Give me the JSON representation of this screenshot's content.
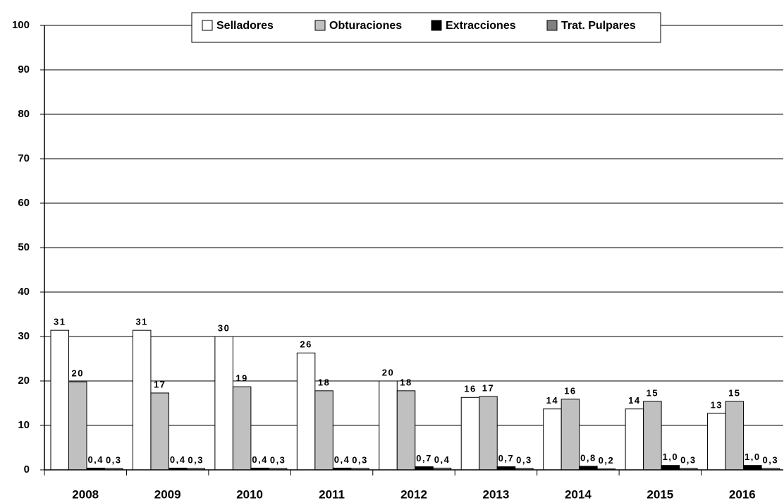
{
  "chart_data": {
    "type": "bar",
    "categories": [
      "2008",
      "2009",
      "2010",
      "2011",
      "2012",
      "2013",
      "2014",
      "2015",
      "2016"
    ],
    "series": [
      {
        "name": "Selladores",
        "color": "#ffffff",
        "values": [
          31.4,
          31.4,
          30.0,
          26.3,
          20.0,
          16.3,
          13.7,
          13.7,
          12.7
        ],
        "value_labels": [
          "31",
          "31",
          "30",
          "26",
          "20",
          "16",
          "14",
          "14",
          "13"
        ]
      },
      {
        "name": "Obturaciones",
        "color": "#c0c0c0",
        "values": [
          19.8,
          17.3,
          18.7,
          17.8,
          17.8,
          16.5,
          15.9,
          15.4,
          15.4
        ],
        "value_labels": [
          "20",
          "17",
          "19",
          "18",
          "18",
          "17",
          "16",
          "15",
          "15"
        ]
      },
      {
        "name": "Extracciones",
        "color": "#000000",
        "values": [
          0.4,
          0.4,
          0.4,
          0.4,
          0.7,
          0.7,
          0.8,
          1.0,
          1.0
        ],
        "value_labels": [
          "0,4",
          "0,4",
          "0,4",
          "0,4",
          "0,7",
          "0,7",
          "0,8",
          "1,0",
          "1,0"
        ]
      },
      {
        "name": "Trat. Pulpares",
        "color": "#808080",
        "values": [
          0.3,
          0.3,
          0.3,
          0.3,
          0.4,
          0.3,
          0.2,
          0.3,
          0.3
        ],
        "value_labels": [
          "0,3",
          "0,3",
          "0,3",
          "0,3",
          "0,4",
          "0,3",
          "0,2",
          "0,3",
          "0,3"
        ]
      }
    ],
    "ylim": [
      0,
      100
    ],
    "yticks": [
      0,
      10,
      20,
      30,
      40,
      50,
      60,
      70,
      80,
      90,
      100
    ],
    "grid": true,
    "legend": "top"
  }
}
